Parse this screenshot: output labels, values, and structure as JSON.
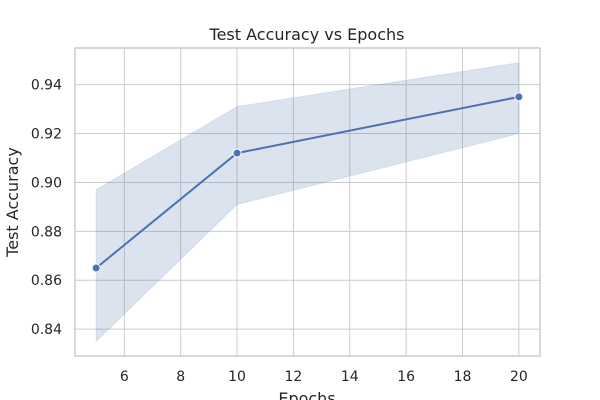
{
  "chart_data": {
    "type": "line",
    "title": "Test Accuracy vs Epochs",
    "xlabel": "Epochs",
    "ylabel": "Test Accuracy",
    "x": [
      5,
      10,
      20
    ],
    "series": [
      {
        "values": [
          0.865,
          0.912,
          0.935
        ],
        "band_lower": [
          0.835,
          0.891,
          0.92
        ],
        "band_upper": [
          0.897,
          0.931,
          0.949
        ]
      }
    ],
    "xlim": [
      4.25,
      20.75
    ],
    "ylim": [
      0.829,
      0.955
    ],
    "xticks": [
      6,
      8,
      10,
      12,
      14,
      16,
      18,
      20
    ],
    "yticks": [
      0.84,
      0.86,
      0.88,
      0.9,
      0.92,
      0.94
    ],
    "xtick_labels": [
      "6",
      "8",
      "10",
      "12",
      "14",
      "16",
      "18",
      "20"
    ],
    "ytick_labels": [
      "0.84",
      "0.86",
      "0.88",
      "0.90",
      "0.92",
      "0.94"
    ],
    "grid": true,
    "colors": {
      "line": "#4c72b0",
      "band": "#4c72b0",
      "grid": "#cccccc",
      "frame": "#cccccc"
    }
  }
}
